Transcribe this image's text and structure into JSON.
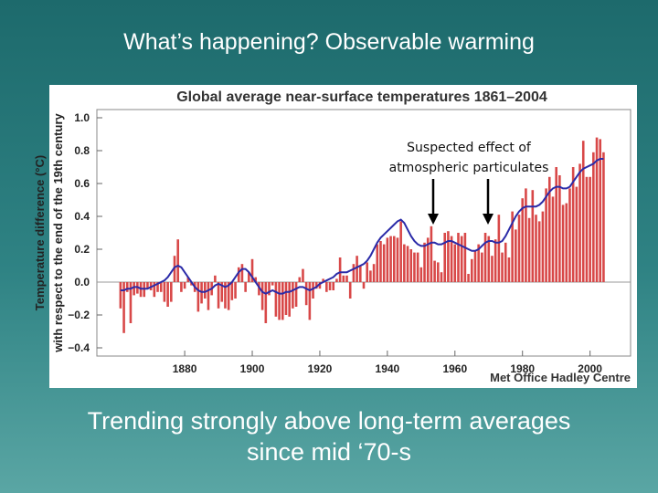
{
  "slide": {
    "title": "What’s happening? Observable warming",
    "caption": [
      "Trending strongly above long-term averages",
      "since mid ‘70-s"
    ]
  },
  "chart_data": {
    "type": "bar",
    "title": "Global average near-surface temperatures 1861–2004",
    "ylabel": [
      "Temperature difference (°C)",
      "with respect to the end of the 19th century"
    ],
    "annotation": [
      "Suspected effect of",
      "atmospheric particulates"
    ],
    "credit": "Met Office Hadley Centre",
    "x": [
      1861,
      1862,
      1863,
      1864,
      1865,
      1866,
      1867,
      1868,
      1869,
      1870,
      1871,
      1872,
      1873,
      1874,
      1875,
      1876,
      1877,
      1878,
      1879,
      1880,
      1881,
      1882,
      1883,
      1884,
      1885,
      1886,
      1887,
      1888,
      1889,
      1890,
      1891,
      1892,
      1893,
      1894,
      1895,
      1896,
      1897,
      1898,
      1899,
      1900,
      1901,
      1902,
      1903,
      1904,
      1905,
      1906,
      1907,
      1908,
      1909,
      1910,
      1911,
      1912,
      1913,
      1914,
      1915,
      1916,
      1917,
      1918,
      1919,
      1920,
      1921,
      1922,
      1923,
      1924,
      1925,
      1926,
      1927,
      1928,
      1929,
      1930,
      1931,
      1932,
      1933,
      1934,
      1935,
      1936,
      1937,
      1938,
      1939,
      1940,
      1941,
      1942,
      1943,
      1944,
      1945,
      1946,
      1947,
      1948,
      1949,
      1950,
      1951,
      1952,
      1953,
      1954,
      1955,
      1956,
      1957,
      1958,
      1959,
      1960,
      1961,
      1962,
      1963,
      1964,
      1965,
      1966,
      1967,
      1968,
      1969,
      1970,
      1971,
      1972,
      1973,
      1974,
      1975,
      1976,
      1977,
      1978,
      1979,
      1980,
      1981,
      1982,
      1983,
      1984,
      1985,
      1986,
      1987,
      1988,
      1989,
      1990,
      1991,
      1992,
      1993,
      1994,
      1995,
      1996,
      1997,
      1998,
      1999,
      2000,
      2001,
      2002,
      2003,
      2004
    ],
    "series": [
      {
        "type": "bar",
        "color": "#d84848",
        "values": [
          -0.16,
          -0.31,
          -0.06,
          -0.25,
          -0.08,
          -0.07,
          -0.09,
          -0.09,
          -0.04,
          -0.05,
          -0.09,
          -0.06,
          -0.06,
          -0.12,
          -0.15,
          -0.12,
          0.16,
          0.26,
          -0.06,
          -0.04,
          0.03,
          -0.02,
          -0.06,
          -0.18,
          -0.13,
          -0.1,
          -0.17,
          -0.08,
          0.04,
          -0.16,
          -0.12,
          -0.16,
          -0.17,
          -0.11,
          -0.1,
          0.09,
          0.11,
          -0.06,
          0.06,
          0.14,
          0.03,
          -0.08,
          -0.17,
          -0.25,
          -0.08,
          -0.02,
          -0.21,
          -0.23,
          -0.23,
          -0.2,
          -0.21,
          -0.16,
          -0.15,
          0.03,
          0.08,
          -0.14,
          -0.23,
          -0.1,
          -0.04,
          -0.04,
          0.02,
          -0.06,
          -0.05,
          -0.05,
          0.02,
          0.15,
          0.04,
          0.04,
          -0.1,
          0.11,
          0.16,
          0.1,
          -0.04,
          0.12,
          0.07,
          0.11,
          0.23,
          0.25,
          0.23,
          0.27,
          0.28,
          0.28,
          0.27,
          0.37,
          0.23,
          0.22,
          0.2,
          0.18,
          0.18,
          0.09,
          0.24,
          0.27,
          0.34,
          0.13,
          0.12,
          0.06,
          0.3,
          0.31,
          0.28,
          0.23,
          0.3,
          0.28,
          0.3,
          0.05,
          0.14,
          0.19,
          0.23,
          0.18,
          0.3,
          0.28,
          0.16,
          0.26,
          0.41,
          0.18,
          0.24,
          0.15,
          0.43,
          0.32,
          0.41,
          0.51,
          0.57,
          0.39,
          0.56,
          0.41,
          0.37,
          0.43,
          0.57,
          0.64,
          0.52,
          0.7,
          0.65,
          0.47,
          0.48,
          0.57,
          0.7,
          0.58,
          0.72,
          0.86,
          0.64,
          0.64,
          0.79,
          0.88,
          0.87,
          0.79
        ]
      },
      {
        "type": "line",
        "color": "#2b2ba8",
        "values": [
          -0.05,
          -0.05,
          -0.04,
          -0.04,
          -0.03,
          -0.03,
          -0.04,
          -0.04,
          -0.04,
          -0.03,
          -0.02,
          -0.01,
          0.0,
          0.01,
          0.03,
          0.06,
          0.09,
          0.1,
          0.09,
          0.06,
          0.03,
          0.0,
          -0.03,
          -0.05,
          -0.06,
          -0.06,
          -0.05,
          -0.04,
          -0.02,
          -0.01,
          -0.02,
          -0.03,
          -0.02,
          0.0,
          0.03,
          0.06,
          0.08,
          0.08,
          0.06,
          0.03,
          0.0,
          -0.03,
          -0.06,
          -0.07,
          -0.06,
          -0.05,
          -0.06,
          -0.07,
          -0.07,
          -0.06,
          -0.06,
          -0.05,
          -0.04,
          -0.03,
          -0.03,
          -0.04,
          -0.05,
          -0.04,
          -0.03,
          -0.01,
          0.0,
          0.01,
          0.02,
          0.03,
          0.05,
          0.06,
          0.06,
          0.06,
          0.07,
          0.08,
          0.09,
          0.1,
          0.11,
          0.13,
          0.16,
          0.2,
          0.24,
          0.27,
          0.29,
          0.31,
          0.33,
          0.35,
          0.37,
          0.38,
          0.36,
          0.32,
          0.28,
          0.25,
          0.23,
          0.22,
          0.22,
          0.23,
          0.24,
          0.24,
          0.23,
          0.23,
          0.24,
          0.25,
          0.25,
          0.24,
          0.23,
          0.22,
          0.21,
          0.2,
          0.19,
          0.19,
          0.2,
          0.22,
          0.24,
          0.25,
          0.25,
          0.24,
          0.24,
          0.25,
          0.28,
          0.32,
          0.36,
          0.4,
          0.43,
          0.45,
          0.46,
          0.46,
          0.46,
          0.46,
          0.47,
          0.49,
          0.52,
          0.55,
          0.57,
          0.58,
          0.58,
          0.57,
          0.57,
          0.58,
          0.61,
          0.64,
          0.67,
          0.69,
          0.7,
          0.71,
          0.72,
          0.74,
          0.75,
          0.75
        ]
      }
    ],
    "xlim": [
      1854,
      2012
    ],
    "ylim": [
      -0.45,
      1.05
    ],
    "xticks": [
      1880,
      1900,
      1920,
      1940,
      1960,
      1980,
      2000
    ],
    "yticks": [
      {
        "value": 1.0,
        "label": "1.0"
      },
      0.8,
      0.6,
      0.4,
      0.2,
      {
        "value": 0,
        "label": "0.0"
      },
      {
        "value": -0.2,
        "label": "−0.2"
      },
      {
        "value": -0.4,
        "label": "−0.4"
      }
    ],
    "grid": false
  }
}
